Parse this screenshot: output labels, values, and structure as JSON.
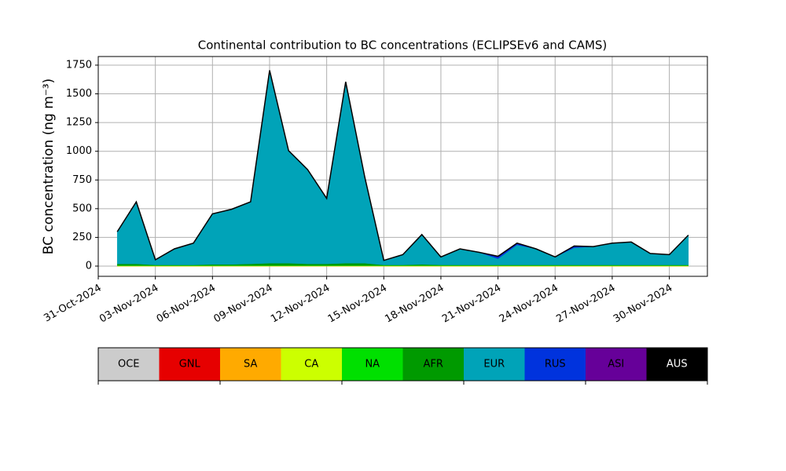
{
  "chart_data": {
    "type": "stacked-area",
    "title": "Continental contribution to BC concentrations (ECLIPSEv6 and CAMS)",
    "y_label": "BC concentration (ng m⁻³)",
    "x": [
      "2024-11-01",
      "2024-11-02",
      "2024-11-03",
      "2024-11-04",
      "2024-11-05",
      "2024-11-06",
      "2024-11-07",
      "2024-11-08",
      "2024-11-09",
      "2024-11-10",
      "2024-11-11",
      "2024-11-12",
      "2024-11-13",
      "2024-11-14",
      "2024-11-15",
      "2024-11-16",
      "2024-11-17",
      "2024-11-18",
      "2024-11-19",
      "2024-11-20",
      "2024-11-21",
      "2024-11-22",
      "2024-11-23",
      "2024-11-24",
      "2024-11-25",
      "2024-11-26",
      "2024-11-27",
      "2024-11-28",
      "2024-11-29",
      "2024-11-30",
      "2024-12-01"
    ],
    "xlim": [
      "2024-10-31",
      "2024-12-02"
    ],
    "xticks": [
      {
        "value": "2024-10-31",
        "label": "31-Oct-2024"
      },
      {
        "value": "2024-11-03",
        "label": "03-Nov-2024"
      },
      {
        "value": "2024-11-06",
        "label": "06-Nov-2024"
      },
      {
        "value": "2024-11-09",
        "label": "09-Nov-2024"
      },
      {
        "value": "2024-11-12",
        "label": "12-Nov-2024"
      },
      {
        "value": "2024-11-15",
        "label": "15-Nov-2024"
      },
      {
        "value": "2024-11-18",
        "label": "18-Nov-2024"
      },
      {
        "value": "2024-11-21",
        "label": "21-Nov-2024"
      },
      {
        "value": "2024-11-24",
        "label": "24-Nov-2024"
      },
      {
        "value": "2024-11-27",
        "label": "27-Nov-2024"
      },
      {
        "value": "2024-11-30",
        "label": "30-Nov-2024"
      }
    ],
    "ylim": [
      -89,
      1825
    ],
    "yticks": [
      0,
      250,
      500,
      750,
      1000,
      1250,
      1500,
      1750
    ],
    "grid": true,
    "series": [
      {
        "name": "OCE",
        "color": "#cccccc",
        "values": [
          0,
          0,
          0,
          0,
          0,
          0,
          0,
          0,
          0,
          0,
          0,
          0,
          0,
          0,
          0,
          0,
          0,
          0,
          0,
          0,
          0,
          0,
          0,
          0,
          0,
          0,
          0,
          0,
          0,
          0,
          0
        ]
      },
      {
        "name": "GNL",
        "color": "#e60000",
        "values": [
          0,
          0,
          0,
          0,
          0,
          0,
          0,
          0,
          0,
          0,
          0,
          0,
          0,
          0,
          0,
          0,
          0,
          0,
          0,
          0,
          0,
          0,
          0,
          0,
          0,
          0,
          0,
          0,
          0,
          0,
          0
        ]
      },
      {
        "name": "SA",
        "color": "#ffaa00",
        "values": [
          0,
          0,
          0,
          0,
          0,
          0,
          0,
          0,
          0,
          0,
          0,
          0,
          0,
          0,
          0,
          0,
          0,
          0,
          0,
          0,
          0,
          0,
          0,
          0,
          0,
          0,
          0,
          0,
          0,
          0,
          0
        ]
      },
      {
        "name": "CA",
        "color": "#ccff00",
        "values": [
          3,
          3,
          3,
          3,
          3,
          3,
          3,
          3,
          3,
          3,
          3,
          3,
          3,
          3,
          3,
          3,
          3,
          3,
          3,
          3,
          3,
          3,
          3,
          3,
          3,
          3,
          3,
          3,
          3,
          3,
          3
        ]
      },
      {
        "name": "NA",
        "color": "#00e000",
        "values": [
          2,
          2,
          2,
          2,
          2,
          2,
          2,
          2,
          2,
          2,
          2,
          2,
          2,
          2,
          2,
          2,
          2,
          2,
          2,
          2,
          2,
          2,
          2,
          2,
          2,
          2,
          2,
          2,
          2,
          2,
          2
        ]
      },
      {
        "name": "AFR",
        "color": "#009a00",
        "values": [
          15,
          15,
          5,
          5,
          5,
          10,
          10,
          15,
          20,
          20,
          15,
          15,
          20,
          20,
          5,
          5,
          10,
          5,
          5,
          5,
          5,
          5,
          5,
          5,
          5,
          5,
          5,
          5,
          5,
          5,
          5
        ]
      },
      {
        "name": "EUR",
        "color": "#00a3b8",
        "values": [
          280,
          540,
          45,
          140,
          190,
          440,
          480,
          540,
          1680,
          980,
          820,
          570,
          1580,
          750,
          40,
          90,
          260,
          70,
          140,
          110,
          55,
          175,
          140,
          70,
          150,
          160,
          190,
          200,
          100,
          90,
          260
        ]
      },
      {
        "name": "RUS",
        "color": "#0033dd",
        "values": [
          0,
          0,
          0,
          0,
          0,
          0,
          0,
          0,
          0,
          0,
          0,
          0,
          0,
          0,
          0,
          0,
          0,
          0,
          0,
          0,
          15,
          10,
          0,
          0,
          10,
          0,
          0,
          0,
          0,
          0,
          0
        ]
      },
      {
        "name": "ASI",
        "color": "#660099",
        "values": [
          0,
          0,
          0,
          0,
          0,
          0,
          0,
          0,
          0,
          0,
          0,
          0,
          0,
          0,
          0,
          0,
          0,
          0,
          0,
          0,
          5,
          5,
          0,
          0,
          5,
          0,
          0,
          0,
          0,
          0,
          0
        ]
      },
      {
        "name": "AUS",
        "color": "#000000",
        "values": [
          0,
          0,
          0,
          0,
          0,
          0,
          0,
          0,
          0,
          0,
          0,
          0,
          0,
          0,
          0,
          0,
          0,
          0,
          0,
          0,
          0,
          0,
          0,
          0,
          0,
          0,
          0,
          0,
          0,
          0,
          0
        ]
      }
    ]
  }
}
